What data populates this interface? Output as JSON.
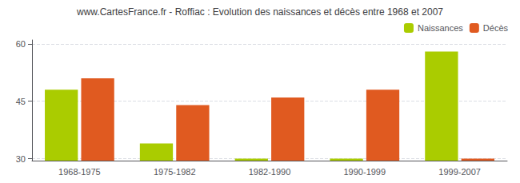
{
  "chart_data": {
    "type": "bar",
    "title": "www.CartesFrance.fr - Roffiac : Evolution des naissances et décès entre 1968 et 2007",
    "categories": [
      "1968-1975",
      "1975-1982",
      "1982-1990",
      "1990-1999",
      "1999-2007"
    ],
    "series": [
      {
        "name": "Naissances",
        "color": "#aacc00",
        "values": [
          48,
          34,
          30,
          30,
          58
        ]
      },
      {
        "name": "Décès",
        "color": "#e05a20",
        "values": [
          51,
          44,
          46,
          48,
          30
        ]
      }
    ],
    "ylim": [
      29.5,
      61
    ],
    "yticks": [
      30,
      45,
      60
    ],
    "grid": true,
    "legend": "upper right"
  }
}
